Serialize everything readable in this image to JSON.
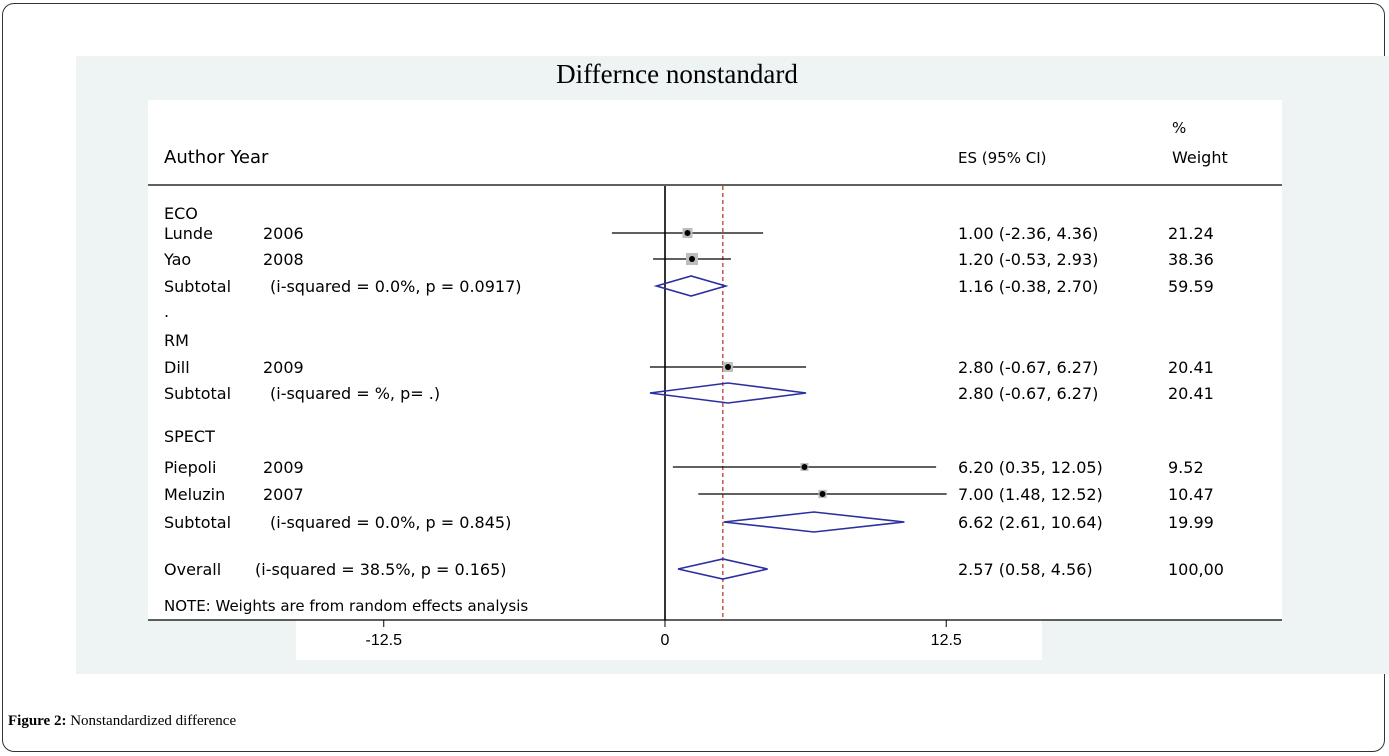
{
  "figure": {
    "caption_label": "Figure 2:",
    "caption_text": " Nonstandardized difference"
  },
  "chart_data": {
    "type": "forest",
    "title": "Differnce nonstandard",
    "columns": {
      "study": "Author Year",
      "es": "ES (95% CI)",
      "weight_line1": "%",
      "weight_line2": "Weight"
    },
    "xlim": [
      -15.5,
      22.5
    ],
    "null_line": 0,
    "overall_line": 2.57,
    "x_ticks": [
      {
        "label": "-12.5",
        "value": -12.5
      },
      {
        "label": "0",
        "value": 0
      },
      {
        "label": "12.5",
        "value": 12.5
      }
    ],
    "rows": [
      {
        "kind": "group",
        "label": "ECO"
      },
      {
        "kind": "study",
        "author": "Lunde",
        "year": "2006",
        "es": 1.0,
        "lo": -2.36,
        "hi": 4.36,
        "ci_text": "1.00 (-2.36,  4.36)",
        "weight": "21.24"
      },
      {
        "kind": "study",
        "author": "Yao",
        "year": "2008",
        "es": 1.2,
        "lo": -0.53,
        "hi": 2.93,
        "ci_text": "1.20 (-0.53,  2.93)",
        "weight": "38.36"
      },
      {
        "kind": "subtotal",
        "label": "Subtotal",
        "stats": "(i-squared = 0.0%, p = 0.0917)",
        "es": 1.16,
        "lo": -0.38,
        "hi": 2.7,
        "ci_text": "1.16 (-0.38,  2.70)",
        "weight": " 59.59"
      },
      {
        "kind": "spacer",
        "label": "."
      },
      {
        "kind": "group",
        "label": "RM"
      },
      {
        "kind": "study",
        "author": "Dill",
        "year": "2009",
        "es": 2.8,
        "lo": -0.67,
        "hi": 6.27,
        "ci_text": "2.80 (-0.67,  6.27)",
        "weight": "20.41"
      },
      {
        "kind": "subtotal",
        "label": "Subtotal",
        "stats": "(i-squared = %, p= .)",
        "es": 2.8,
        "lo": -0.67,
        "hi": 6.27,
        "ci_text": "2.80 (-0.67,  6.27)",
        "weight": "20.41"
      },
      {
        "kind": "group",
        "label": "SPECT"
      },
      {
        "kind": "study",
        "author": "Piepoli",
        "year": "2009",
        "es": 6.2,
        "lo": 0.35,
        "hi": 12.05,
        "ci_text": "6.20  (0.35,  12.05)",
        "weight": "9.52"
      },
      {
        "kind": "study",
        "author": "Meluzin",
        "year": "2007",
        "es": 7.0,
        "lo": 1.48,
        "hi": 12.52,
        "ci_text": "7.00  (1.48,  12.52)",
        "weight": "10.47"
      },
      {
        "kind": "subtotal",
        "label": "Subtotal",
        "stats": "(i-squared = 0.0%, p = 0.845)",
        "es": 6.62,
        "lo": 2.61,
        "hi": 10.64,
        "ci_text": "6.62  (2.61,  10.64)",
        "weight": "19.99"
      },
      {
        "kind": "overall",
        "label": "Overall",
        "stats": "(i-squared = 38.5%, p = 0.165)",
        "es": 2.57,
        "lo": 0.58,
        "hi": 4.56,
        "ci_text": "2.57  (0.58,  4.56)",
        "weight": "100,00"
      }
    ],
    "note": "NOTE: Weights are from random effects analysis",
    "colors": {
      "diamond": "#2b2fa0",
      "overall_line": "#c0392b",
      "outer_bg": "#eef3f3",
      "plot_bg": "#ffffff"
    }
  }
}
